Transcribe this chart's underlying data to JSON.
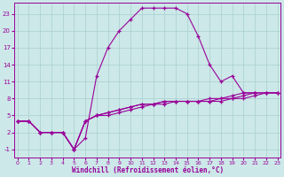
{
  "xlabel": "Windchill (Refroidissement éolien,°C)",
  "bg_color": "#cce8e8",
  "grid_color": "#aacfcf",
  "line_color": "#990099",
  "x_ticks": [
    0,
    1,
    2,
    3,
    4,
    5,
    6,
    7,
    8,
    9,
    10,
    11,
    12,
    13,
    14,
    15,
    16,
    17,
    18,
    19,
    20,
    21,
    22,
    23
  ],
  "y_ticks": [
    -1,
    2,
    5,
    8,
    11,
    14,
    17,
    20,
    23
  ],
  "ylim": [
    -2.5,
    25
  ],
  "xlim": [
    -0.3,
    23.3
  ],
  "series": [
    [
      4,
      4,
      2,
      2,
      2,
      -1,
      1,
      12,
      17,
      20,
      22,
      24,
      24,
      24,
      24,
      23,
      19,
      14,
      11,
      12,
      9,
      9,
      null,
      null
    ],
    [
      4,
      4,
      2,
      2,
      2,
      -1,
      4,
      5,
      5.5,
      6,
      6.5,
      7,
      7,
      7.5,
      7.5,
      7.5,
      7.5,
      8,
      8,
      8.5,
      9,
      9,
      9,
      9
    ],
    [
      4,
      4,
      2,
      2,
      2,
      -1,
      4,
      5,
      5.5,
      6,
      6.5,
      7,
      7,
      7.5,
      7.5,
      7.5,
      7.5,
      7.5,
      8,
      8,
      8.5,
      9,
      9,
      9
    ],
    [
      4,
      4,
      2,
      2,
      2,
      -1,
      4,
      5,
      5,
      5.5,
      6,
      6.5,
      7,
      7,
      7.5,
      7.5,
      7.5,
      7.5,
      7.5,
      8,
      8,
      8.5,
      9,
      9
    ]
  ]
}
